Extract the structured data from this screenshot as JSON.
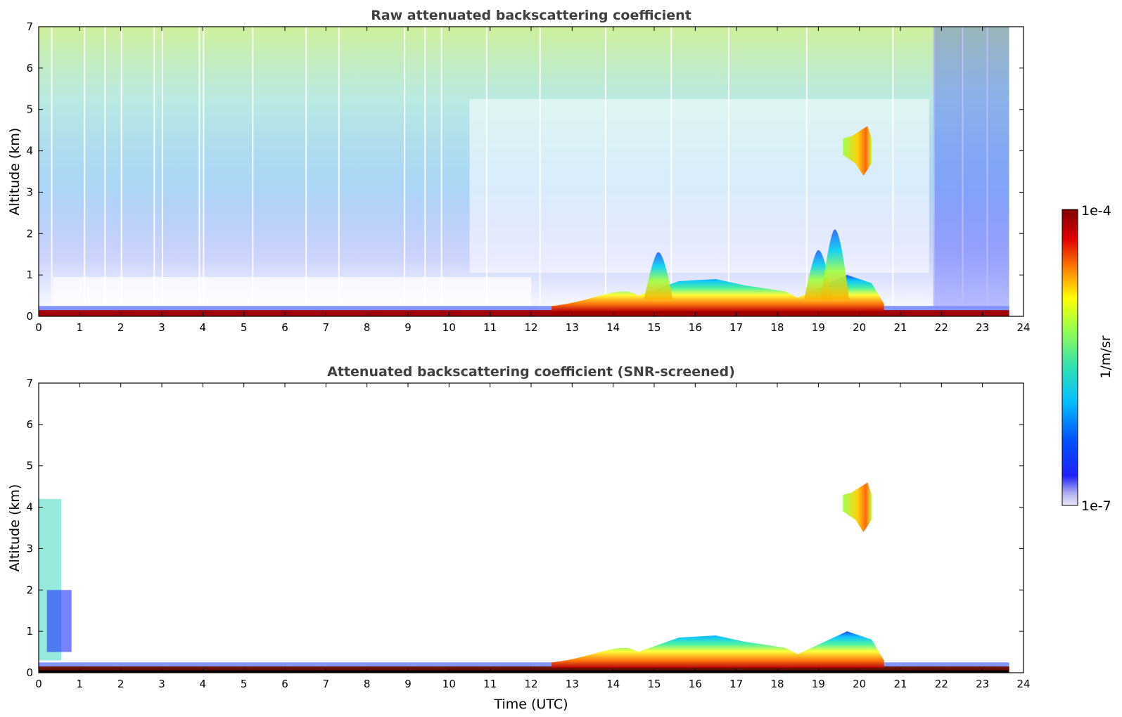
{
  "chart_data": [
    {
      "type": "heatmap",
      "title": "Raw attenuated backscattering coefficient",
      "xlabel": "",
      "ylabel": "Altitude (km)",
      "xlim": [
        0,
        24
      ],
      "ylim": [
        0,
        7
      ],
      "x_ticks": [
        "0",
        "1",
        "2",
        "3",
        "4",
        "5",
        "6",
        "7",
        "8",
        "9",
        "10",
        "11",
        "12",
        "13",
        "14",
        "15",
        "16",
        "17",
        "18",
        "19",
        "20",
        "21",
        "22",
        "23",
        "24"
      ],
      "y_ticks": [
        "0",
        "1",
        "2",
        "3",
        "4",
        "5",
        "6",
        "7"
      ],
      "data_end_time": 23.65,
      "features": [
        {
          "kind": "surface_layer",
          "time_start": 0,
          "time_end": 23.65,
          "top_km": 0.15
        },
        {
          "kind": "boundary_layer",
          "time_start": 12.5,
          "time_end": 18.5,
          "top_km": 0.9
        },
        {
          "kind": "convective_plume",
          "time": 15.1,
          "top_km": 1.55
        },
        {
          "kind": "convective_plume",
          "time": 19.0,
          "top_km": 1.6
        },
        {
          "kind": "convective_plume",
          "time": 19.4,
          "top_km": 2.1
        },
        {
          "kind": "elevated_aerosol_layer",
          "time_start": 19.6,
          "time_end": 20.3,
          "bottom_km": 3.4,
          "top_km": 4.6
        }
      ]
    },
    {
      "type": "heatmap",
      "title": "Attenuated backscattering coefficient (SNR-screened)",
      "xlabel": "Time (UTC)",
      "ylabel": "Altitude (km)",
      "xlim": [
        0,
        24
      ],
      "ylim": [
        0,
        7
      ],
      "x_ticks": [
        "0",
        "1",
        "2",
        "3",
        "4",
        "5",
        "6",
        "7",
        "8",
        "9",
        "10",
        "11",
        "12",
        "13",
        "14",
        "15",
        "16",
        "17",
        "18",
        "19",
        "20",
        "21",
        "22",
        "23",
        "24"
      ],
      "y_ticks": [
        "0",
        "1",
        "2",
        "3",
        "4",
        "5",
        "6",
        "7"
      ],
      "data_end_time": 23.65,
      "features": [
        {
          "kind": "surface_layer",
          "time_start": 0,
          "time_end": 23.65,
          "top_km": 0.15
        },
        {
          "kind": "boundary_layer",
          "time_start": 12.5,
          "time_end": 18.5,
          "top_km": 0.9
        },
        {
          "kind": "elevated_aerosol_layer",
          "time_start": 19.6,
          "time_end": 20.3,
          "bottom_km": 3.4,
          "top_km": 4.6
        }
      ]
    }
  ],
  "colorbar": {
    "label": "1/m/sr",
    "max_label": "1e-4",
    "min_label": "1e-7",
    "scale": "log",
    "colors": [
      "#e8e8f8",
      "#0000ff",
      "#00bfff",
      "#33e0b0",
      "#9cff4a",
      "#ffff00",
      "#ff8000",
      "#e00000",
      "#800000"
    ]
  }
}
